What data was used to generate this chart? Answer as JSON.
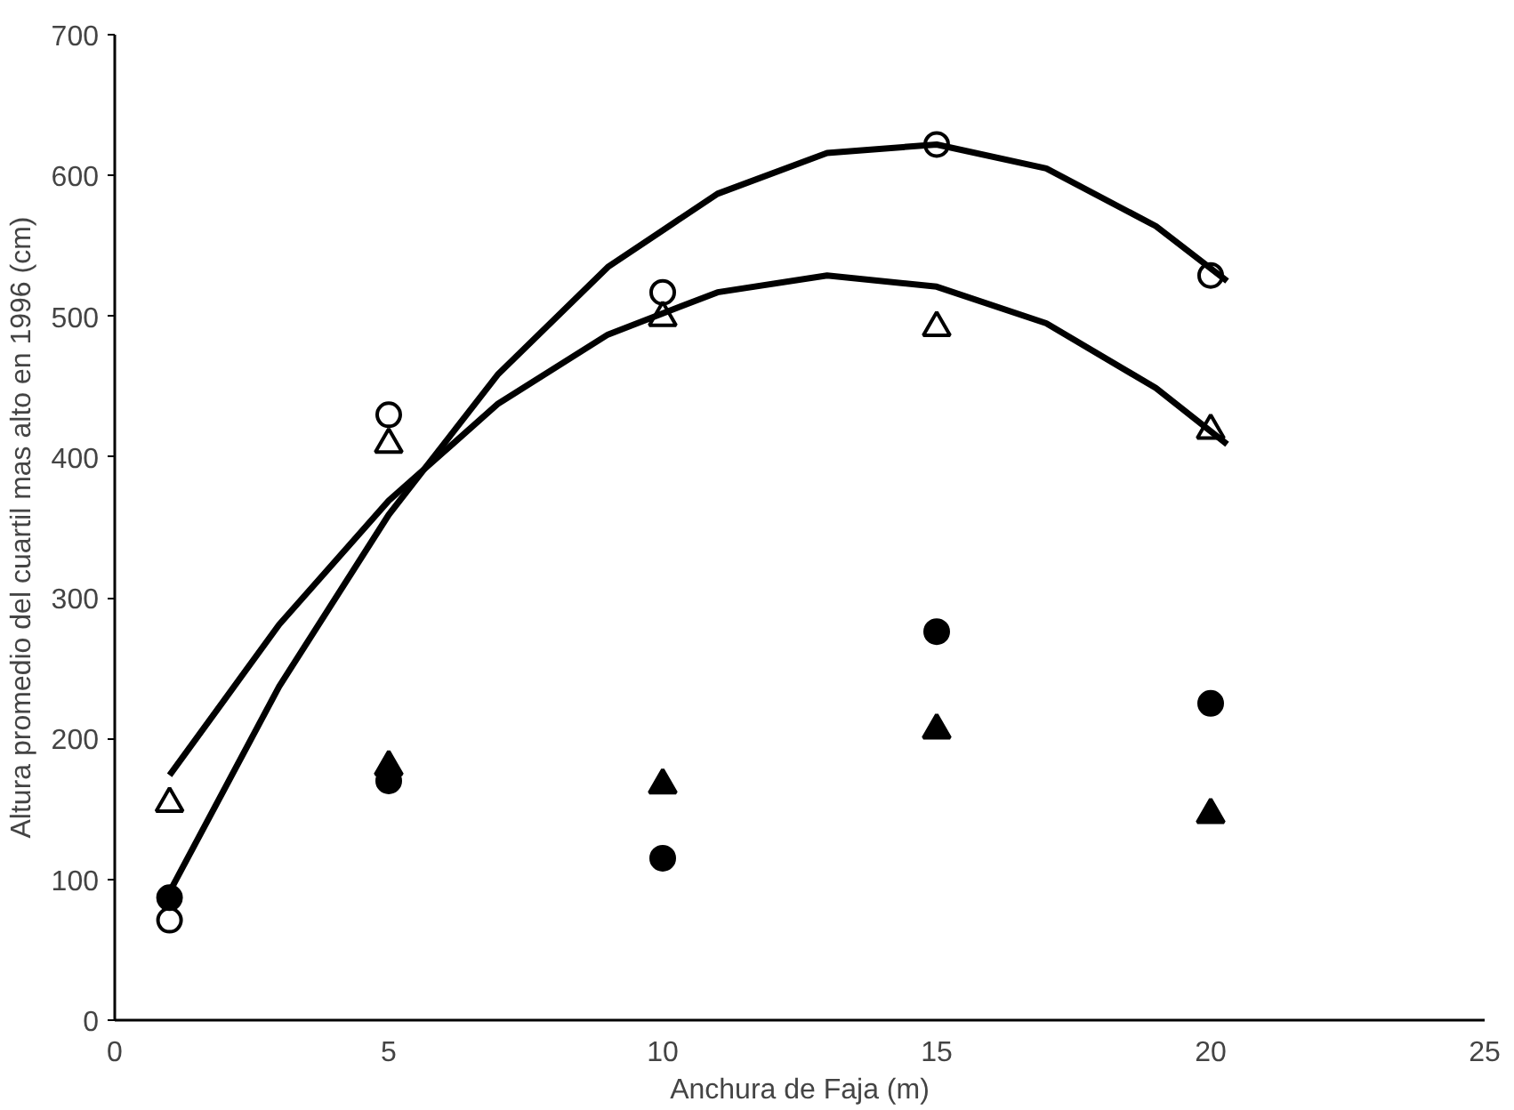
{
  "chart_data": {
    "type": "scatter",
    "xlabel": "Anchura de Faja (m)",
    "ylabel": "Altura promedio del cuartil mas alto en 1996 (cm)",
    "xlim": [
      0,
      25
    ],
    "ylim": [
      0,
      700
    ],
    "xticks": [
      0,
      5,
      10,
      15,
      20,
      25
    ],
    "yticks": [
      0,
      100,
      200,
      300,
      400,
      500,
      600,
      700
    ],
    "grid": false,
    "series": [
      {
        "color": "#ffffff",
        "marker": "circle",
        "x": [
          1,
          5,
          10,
          15,
          20
        ],
        "values": [
          71,
          430,
          517,
          622,
          529
        ]
      },
      {
        "color": "#ffffff",
        "marker": "triangle",
        "x": [
          1,
          5,
          10,
          15,
          20
        ],
        "values": [
          154,
          409,
          499,
          492,
          419
        ]
      },
      {
        "color": "#000000",
        "marker": "circle",
        "x": [
          1,
          5,
          10,
          15,
          20
        ],
        "values": [
          87,
          170,
          115,
          276,
          225
        ]
      },
      {
        "color": "#000000",
        "marker": "triangle",
        "x": [
          5,
          10,
          15,
          20
        ],
        "values": [
          180,
          167,
          206,
          146
        ]
      },
      {
        "type": "line",
        "color": "#000000",
        "marker": "none",
        "line_style": "solid",
        "x": [
          1,
          3,
          5,
          7,
          9,
          11,
          13,
          15,
          17,
          19,
          20.3
        ],
        "values": [
          91,
          237,
          359,
          459,
          535,
          587,
          616,
          622,
          605,
          564,
          525
        ]
      },
      {
        "type": "line",
        "color": "#000000",
        "marker": "none",
        "line_style": "solid",
        "x": [
          1,
          3,
          5,
          7,
          9,
          11,
          13,
          15,
          17,
          19,
          20.3
        ],
        "values": [
          174,
          281,
          369,
          438,
          487,
          517,
          529,
          521,
          495,
          449,
          409
        ]
      }
    ]
  }
}
